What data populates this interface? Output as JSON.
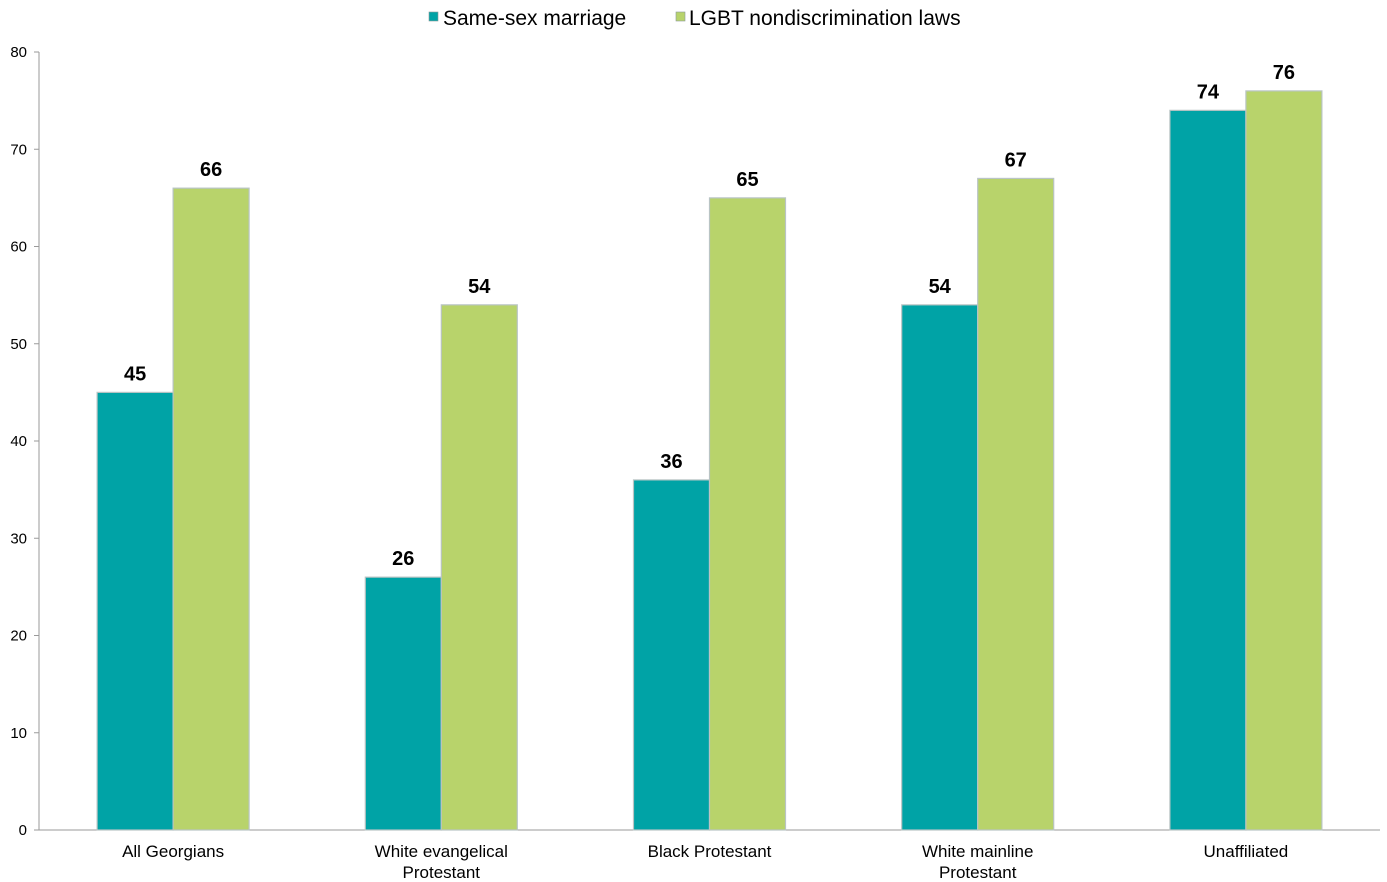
{
  "chart_data": {
    "type": "bar",
    "categories": [
      [
        "All Georgians"
      ],
      [
        "White evangelical",
        "Protestant"
      ],
      [
        "Black Protestant"
      ],
      [
        "White mainline",
        "Protestant"
      ],
      [
        "Unaffiliated"
      ]
    ],
    "series": [
      {
        "name": "Same-sex marriage",
        "color": "#00a3a6",
        "values": [
          45,
          26,
          36,
          54,
          74
        ]
      },
      {
        "name": "LGBT nondiscrimination laws",
        "color": "#b8d36b",
        "values": [
          66,
          54,
          65,
          67,
          76
        ]
      }
    ],
    "yticks": [
      0,
      10,
      20,
      30,
      40,
      50,
      60,
      70,
      80
    ],
    "ylim": [
      0,
      80
    ],
    "grid": false,
    "legend_position": "top-center",
    "data_labels": true
  }
}
